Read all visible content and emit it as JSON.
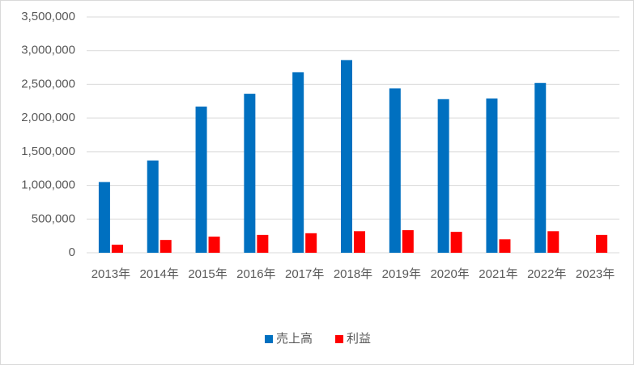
{
  "chart_data": {
    "type": "bar",
    "categories": [
      "2013年",
      "2014年",
      "2015年",
      "2016年",
      "2017年",
      "2018年",
      "2019年",
      "2020年",
      "2021年",
      "2022年",
      "2023年"
    ],
    "series": [
      {
        "name": "売上高",
        "color": "#0070c0",
        "values": [
          1050000,
          1370000,
          2170000,
          2360000,
          2680000,
          2860000,
          2440000,
          2280000,
          2290000,
          2520000,
          null
        ]
      },
      {
        "name": "利益",
        "color": "#ff0000",
        "values": [
          120000,
          190000,
          240000,
          265000,
          290000,
          320000,
          335000,
          310000,
          200000,
          320000,
          265000
        ]
      }
    ],
    "ylim": [
      0,
      3500000
    ],
    "yticks": [
      0,
      {
        "value": 500000,
        "label": "500,000"
      },
      {
        "value": 1000000,
        "label": "1,000,000"
      },
      {
        "value": 1500000,
        "label": "1,500,000"
      },
      {
        "value": 2000000,
        "label": "2,000,000"
      },
      {
        "value": 2500000,
        "label": "2,500,000"
      },
      {
        "value": 3000000,
        "label": "3,000,000"
      },
      {
        "value": 3500000,
        "label": "3,500,000"
      }
    ],
    "grid": true,
    "legend": "bottom"
  }
}
